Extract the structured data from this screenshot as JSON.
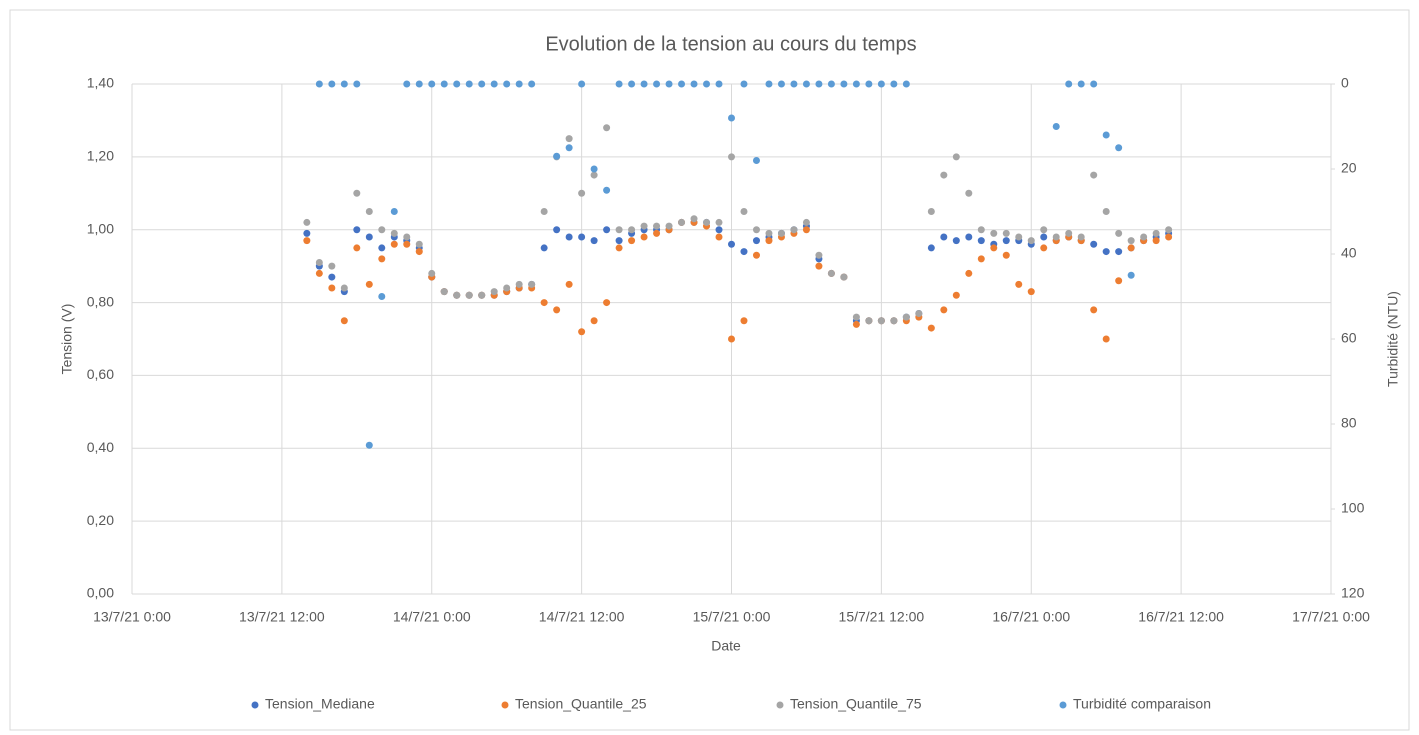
{
  "chart_data": {
    "type": "scatter",
    "title": "Evolution de la tension au cours du temps",
    "xlabel": "Date",
    "ylabel": "Tension (V)",
    "y2label": "Turbidité (NTU)",
    "xlim": [
      "13/7/21 0:00",
      "17/7/21 0:00"
    ],
    "xticks": [
      "13/7/21 0:00",
      "13/7/21 12:00",
      "14/7/21 0:00",
      "14/7/21 12:00",
      "15/7/21 0:00",
      "15/7/21 12:00",
      "16/7/21 0:00",
      "16/7/21 12:00",
      "17/7/21 0:00"
    ],
    "ylim": [
      0,
      1.4
    ],
    "yticks": [
      {
        "value": 0,
        "label": "0,00"
      },
      {
        "value": 0.2,
        "label": "0,20"
      },
      {
        "value": 0.4,
        "label": "0,40"
      },
      {
        "value": 0.6,
        "label": "0,60"
      },
      {
        "value": 0.8,
        "label": "0,80"
      },
      {
        "value": 1.0,
        "label": "1,00"
      },
      {
        "value": 1.2,
        "label": "1,20"
      },
      {
        "value": 1.4,
        "label": "1,40"
      }
    ],
    "y2lim": [
      0,
      120
    ],
    "y2_inverted": true,
    "y2ticks": [
      0,
      20,
      40,
      60,
      80,
      100,
      120
    ],
    "grid": true,
    "legend": "bottom",
    "x": [
      "13/7/21 14:00",
      "13/7/21 15:00",
      "13/7/21 16:00",
      "13/7/21 17:00",
      "13/7/21 18:00",
      "13/7/21 19:00",
      "13/7/21 20:00",
      "13/7/21 21:00",
      "13/7/21 22:00",
      "13/7/21 23:00",
      "14/7/21 0:00",
      "14/7/21 1:00",
      "14/7/21 2:00",
      "14/7/21 3:00",
      "14/7/21 4:00",
      "14/7/21 5:00",
      "14/7/21 6:00",
      "14/7/21 7:00",
      "14/7/21 8:00",
      "14/7/21 9:00",
      "14/7/21 10:00",
      "14/7/21 11:00",
      "14/7/21 12:00",
      "14/7/21 13:00",
      "14/7/21 14:00",
      "14/7/21 15:00",
      "14/7/21 16:00",
      "14/7/21 17:00",
      "14/7/21 18:00",
      "14/7/21 19:00",
      "14/7/21 20:00",
      "14/7/21 21:00",
      "14/7/21 22:00",
      "14/7/21 23:00",
      "15/7/21 0:00",
      "15/7/21 1:00",
      "15/7/21 2:00",
      "15/7/21 3:00",
      "15/7/21 4:00",
      "15/7/21 5:00",
      "15/7/21 6:00",
      "15/7/21 7:00",
      "15/7/21 8:00",
      "15/7/21 9:00",
      "15/7/21 10:00",
      "15/7/21 11:00",
      "15/7/21 12:00",
      "15/7/21 13:00",
      "15/7/21 14:00",
      "15/7/21 15:00",
      "15/7/21 16:00",
      "15/7/21 17:00",
      "15/7/21 18:00",
      "15/7/21 19:00",
      "15/7/21 20:00",
      "15/7/21 21:00",
      "15/7/21 22:00",
      "15/7/21 23:00",
      "16/7/21 0:00",
      "16/7/21 1:00",
      "16/7/21 2:00",
      "16/7/21 3:00",
      "16/7/21 4:00",
      "16/7/21 5:00",
      "16/7/21 6:00",
      "16/7/21 7:00",
      "16/7/21 8:00",
      "16/7/21 9:00",
      "16/7/21 10:00",
      "16/7/21 11:00"
    ],
    "series": [
      {
        "name": "Tension_Mediane",
        "color": "#4472c4",
        "values": [
          0.99,
          0.9,
          0.87,
          0.83,
          1.0,
          0.98,
          0.95,
          0.98,
          0.97,
          0.95,
          0.87,
          0.83,
          0.82,
          0.82,
          0.82,
          0.82,
          0.83,
          0.84,
          0.85,
          0.95,
          1.0,
          0.98,
          0.98,
          0.97,
          1.0,
          0.97,
          0.99,
          1.0,
          1.0,
          1.0,
          1.02,
          1.02,
          1.02,
          1.0,
          0.96,
          0.94,
          0.97,
          0.98,
          0.99,
          1.0,
          1.01,
          0.92,
          0.88,
          0.87,
          0.75,
          0.75,
          0.75,
          0.75,
          0.76,
          0.77,
          0.95,
          0.98,
          0.97,
          0.98,
          0.97,
          0.96,
          0.97,
          0.97,
          0.96,
          0.98,
          0.97,
          0.98,
          0.97,
          0.96,
          0.94,
          0.94,
          0.95,
          0.97,
          0.98,
          0.99
        ]
      },
      {
        "name": "Tension_Quantile_25",
        "color": "#ed7d31",
        "values": [
          0.97,
          0.88,
          0.84,
          0.75,
          0.95,
          0.85,
          0.92,
          0.96,
          0.96,
          0.94,
          0.87,
          0.83,
          0.82,
          0.82,
          0.82,
          0.82,
          0.83,
          0.84,
          0.84,
          0.8,
          0.78,
          0.85,
          0.72,
          0.75,
          0.8,
          0.95,
          0.97,
          0.98,
          0.99,
          1.0,
          1.02,
          1.02,
          1.01,
          0.98,
          0.7,
          0.75,
          0.93,
          0.97,
          0.98,
          0.99,
          1.0,
          0.9,
          0.88,
          0.87,
          0.74,
          0.75,
          0.75,
          0.75,
          0.75,
          0.76,
          0.73,
          0.78,
          0.82,
          0.88,
          0.92,
          0.95,
          0.93,
          0.85,
          0.83,
          0.95,
          0.97,
          0.98,
          0.97,
          0.78,
          0.7,
          0.86,
          0.95,
          0.97,
          0.97,
          0.98
        ]
      },
      {
        "name": "Tension_Quantile_75",
        "color": "#a5a5a5",
        "values": [
          1.02,
          0.91,
          0.9,
          0.84,
          1.1,
          1.05,
          1.0,
          0.99,
          0.98,
          0.96,
          0.88,
          0.83,
          0.82,
          0.82,
          0.82,
          0.83,
          0.84,
          0.85,
          0.85,
          1.05,
          1.2,
          1.25,
          1.1,
          1.15,
          1.28,
          1.0,
          1.0,
          1.01,
          1.01,
          1.01,
          1.02,
          1.03,
          1.02,
          1.02,
          1.2,
          1.05,
          1.0,
          0.99,
          0.99,
          1.0,
          1.02,
          0.93,
          0.88,
          0.87,
          0.76,
          0.75,
          0.75,
          0.75,
          0.76,
          0.77,
          1.05,
          1.15,
          1.2,
          1.1,
          1.0,
          0.99,
          0.99,
          0.98,
          0.97,
          1.0,
          0.98,
          0.99,
          0.98,
          1.15,
          1.05,
          0.99,
          0.97,
          0.98,
          0.99,
          1.0
        ]
      },
      {
        "name": "Turbidité comparaison",
        "color": "#5b9bd5",
        "axis": "y2",
        "values": [
          null,
          0,
          0,
          0,
          0,
          85,
          50,
          30,
          0,
          0,
          0,
          0,
          0,
          0,
          0,
          0,
          0,
          0,
          0,
          null,
          17,
          15,
          0,
          20,
          25,
          0,
          0,
          0,
          0,
          0,
          0,
          0,
          0,
          0,
          8,
          0,
          18,
          0,
          0,
          0,
          0,
          0,
          0,
          0,
          0,
          0,
          0,
          0,
          0,
          null,
          null,
          null,
          null,
          null,
          null,
          null,
          null,
          null,
          null,
          null,
          10,
          0,
          0,
          0,
          12,
          15,
          45,
          null,
          null,
          null
        ]
      }
    ]
  }
}
